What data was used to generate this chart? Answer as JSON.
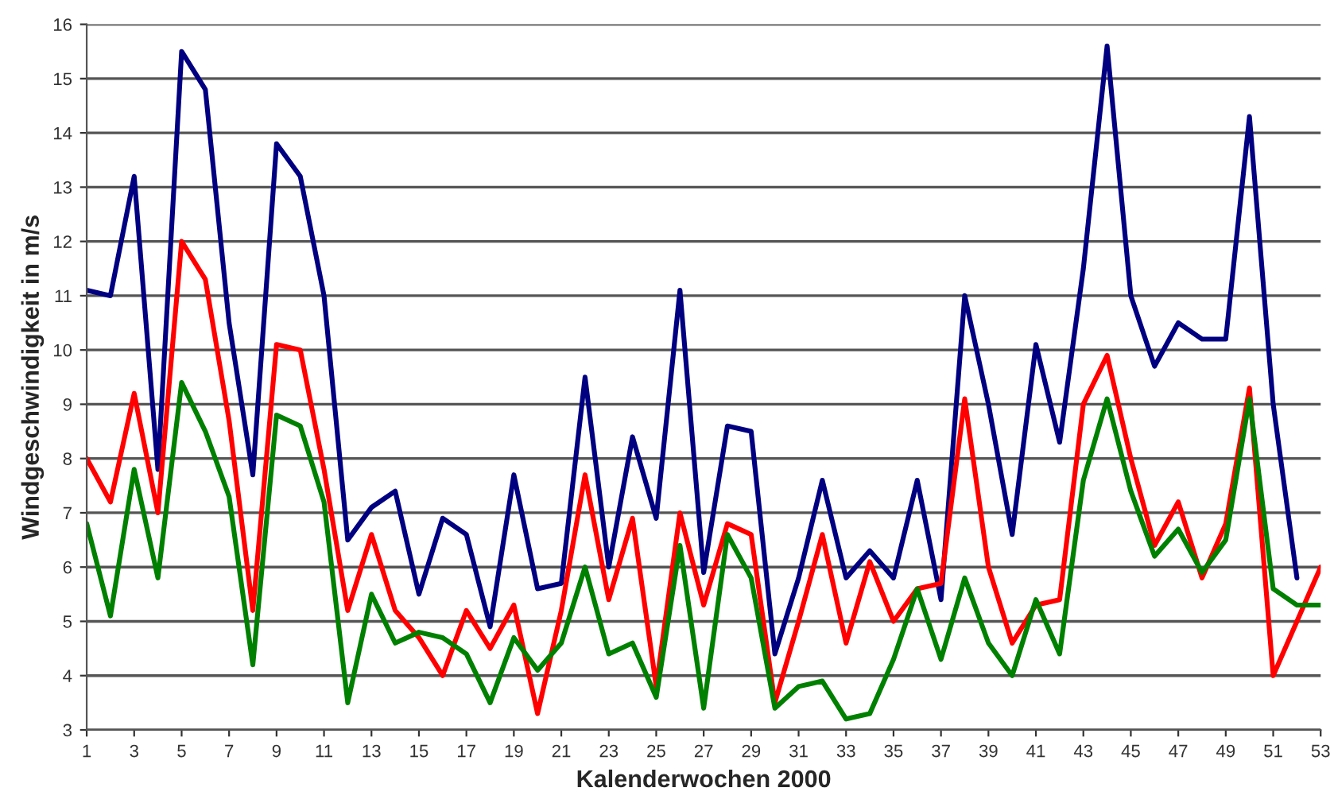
{
  "chart_data": {
    "type": "line",
    "xlabel": "Kalenderwochen 2000",
    "ylabel": "Windgeschwindigkeit in m/s",
    "x": [
      1,
      2,
      3,
      4,
      5,
      6,
      7,
      8,
      9,
      10,
      11,
      12,
      13,
      14,
      15,
      16,
      17,
      18,
      19,
      20,
      21,
      22,
      23,
      24,
      25,
      26,
      27,
      28,
      29,
      30,
      31,
      32,
      33,
      34,
      35,
      36,
      37,
      38,
      39,
      40,
      41,
      42,
      43,
      44,
      45,
      46,
      47,
      48,
      49,
      50,
      51,
      52,
      53
    ],
    "series": [
      {
        "color": "#000080",
        "values": [
          11.1,
          11.0,
          13.2,
          7.8,
          15.5,
          14.8,
          10.5,
          7.7,
          13.8,
          13.2,
          11.0,
          6.5,
          7.1,
          7.4,
          5.5,
          6.9,
          6.6,
          4.9,
          7.7,
          5.6,
          5.7,
          9.5,
          6.0,
          8.4,
          6.9,
          11.1,
          5.9,
          8.6,
          8.5,
          4.4,
          5.8,
          7.6,
          5.8,
          6.3,
          5.8,
          7.6,
          5.4,
          11.0,
          9.0,
          6.6,
          10.1,
          8.3,
          11.5,
          15.6,
          11.0,
          9.7,
          10.5,
          10.2,
          10.2,
          14.3,
          9.0,
          5.8,
          null
        ]
      },
      {
        "color": "#ff0000",
        "values": [
          8.0,
          7.2,
          9.2,
          7.0,
          12.0,
          11.3,
          8.7,
          5.2,
          10.1,
          10.0,
          7.8,
          5.2,
          6.6,
          5.2,
          4.7,
          4.0,
          5.2,
          4.5,
          5.3,
          3.3,
          5.2,
          7.7,
          5.4,
          6.9,
          3.8,
          7.0,
          5.3,
          6.8,
          6.6,
          3.5,
          5.0,
          6.6,
          4.6,
          6.1,
          5.0,
          5.6,
          5.7,
          9.1,
          6.0,
          4.6,
          5.3,
          5.4,
          9.0,
          9.9,
          8.0,
          6.4,
          7.2,
          5.8,
          6.8,
          9.3,
          4.0,
          5.0,
          6.0
        ]
      },
      {
        "color": "#008000",
        "values": [
          6.8,
          5.1,
          7.8,
          5.8,
          9.4,
          8.5,
          7.3,
          4.2,
          8.8,
          8.6,
          7.2,
          3.5,
          5.5,
          4.6,
          4.8,
          4.7,
          4.4,
          3.5,
          4.7,
          4.1,
          4.6,
          6.0,
          4.4,
          4.6,
          3.6,
          6.4,
          3.4,
          6.6,
          5.8,
          3.4,
          3.8,
          3.9,
          3.2,
          3.3,
          4.3,
          5.6,
          4.3,
          5.8,
          4.6,
          4.0,
          5.4,
          4.4,
          7.6,
          9.1,
          7.4,
          6.2,
          6.7,
          5.9,
          6.5,
          9.1,
          5.6,
          5.3,
          5.3
        ]
      }
    ],
    "xlim": [
      1,
      53
    ],
    "xticks": [
      1,
      3,
      5,
      7,
      9,
      11,
      13,
      15,
      17,
      19,
      21,
      23,
      25,
      27,
      29,
      31,
      33,
      35,
      37,
      39,
      41,
      43,
      45,
      47,
      49,
      51,
      53
    ],
    "ylim": [
      3,
      16
    ],
    "yticks": [
      3,
      4,
      5,
      6,
      7,
      8,
      9,
      10,
      11,
      12,
      13,
      14,
      15,
      16
    ],
    "grid": "y",
    "marker": "none",
    "line_style": "solid"
  }
}
